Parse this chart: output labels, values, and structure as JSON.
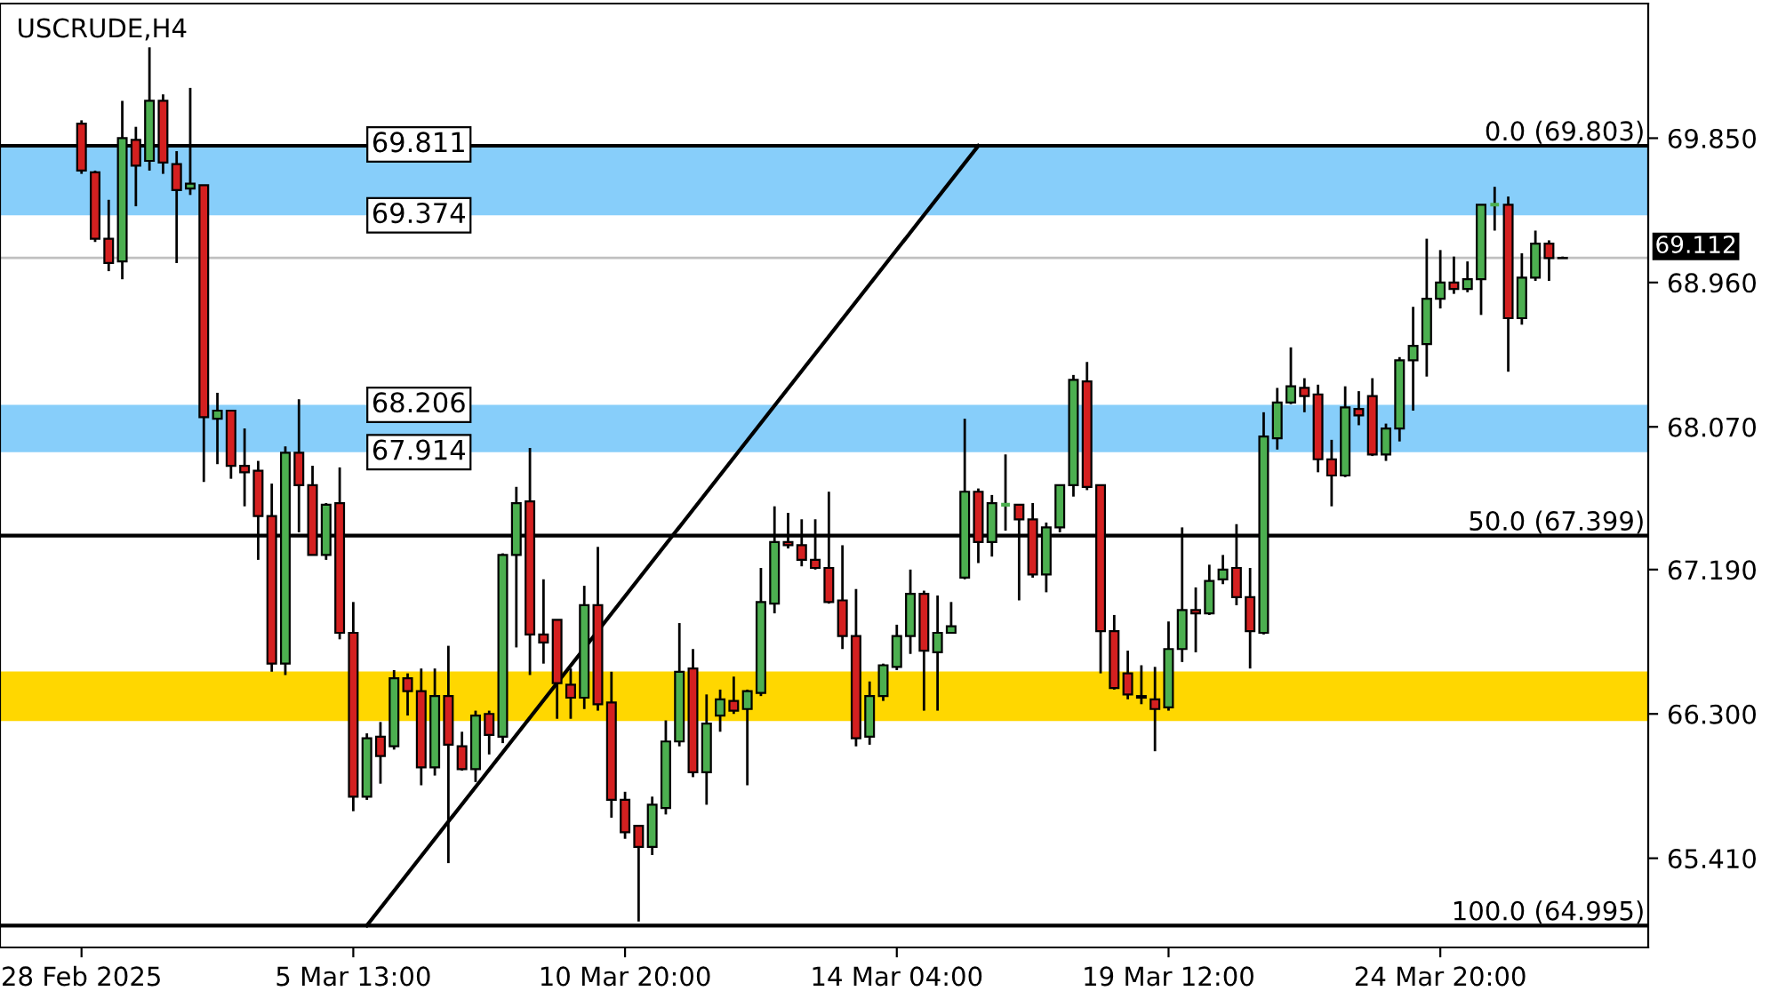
{
  "chart_data": {
    "type": "candlestick",
    "title": "USCRUDE,H4",
    "categories": [
      "28 Feb 2025",
      null,
      null,
      null,
      null,
      null,
      null,
      null,
      null,
      null,
      null,
      null,
      null,
      null,
      null,
      null,
      null,
      null,
      null,
      null,
      "5 Mar 13:00",
      null,
      null,
      null,
      null,
      null,
      null,
      null,
      null,
      null,
      null,
      null,
      null,
      null,
      null,
      null,
      null,
      null,
      null,
      null,
      "10 Mar 20:00",
      null,
      null,
      null,
      null,
      null,
      null,
      null,
      null,
      null,
      null,
      null,
      null,
      null,
      null,
      null,
      null,
      null,
      null,
      null,
      "14 Mar 04:00",
      null,
      null,
      null,
      null,
      null,
      null,
      null,
      null,
      null,
      null,
      null,
      null,
      null,
      null,
      null,
      null,
      null,
      null,
      null,
      "19 Mar 12:00",
      null,
      null,
      null,
      null,
      null,
      null,
      null,
      null,
      null,
      null,
      null,
      null,
      null,
      null,
      null,
      null,
      null,
      null,
      null,
      "24 Mar 20:00",
      null,
      null,
      null,
      null,
      null,
      null,
      null,
      null,
      null
    ],
    "ohlc": [
      [
        69.94,
        69.96,
        69.63,
        69.65
      ],
      [
        69.64,
        69.65,
        69.21,
        69.23
      ],
      [
        69.23,
        69.47,
        69.03,
        69.08
      ],
      [
        69.09,
        70.08,
        68.98,
        69.85
      ],
      [
        69.84,
        69.92,
        69.43,
        69.68
      ],
      [
        69.71,
        70.41,
        69.65,
        70.08
      ],
      [
        70.08,
        70.12,
        69.63,
        69.7
      ],
      [
        69.69,
        69.77,
        69.08,
        69.53
      ],
      [
        69.54,
        70.16,
        69.5,
        69.57
      ],
      [
        69.56,
        69.56,
        67.73,
        68.13
      ],
      [
        68.12,
        68.28,
        67.84,
        68.17
      ],
      [
        68.17,
        68.17,
        67.75,
        67.83
      ],
      [
        67.83,
        68.06,
        67.58,
        67.79
      ],
      [
        67.8,
        67.86,
        67.25,
        67.52
      ],
      [
        67.52,
        67.72,
        66.56,
        66.61
      ],
      [
        66.61,
        67.95,
        66.54,
        67.91
      ],
      [
        67.91,
        68.24,
        67.42,
        67.71
      ],
      [
        67.71,
        67.83,
        67.28,
        67.28
      ],
      [
        67.28,
        67.6,
        67.25,
        67.59
      ],
      [
        67.6,
        67.82,
        66.76,
        66.8
      ],
      [
        66.8,
        66.99,
        65.7,
        65.79
      ],
      [
        65.79,
        66.18,
        65.77,
        66.15
      ],
      [
        66.16,
        66.25,
        65.87,
        66.04
      ],
      [
        66.1,
        66.57,
        66.08,
        66.52
      ],
      [
        66.52,
        66.55,
        66.29,
        66.44
      ],
      [
        66.44,
        66.58,
        65.86,
        65.97
      ],
      [
        65.97,
        66.58,
        65.92,
        66.41
      ],
      [
        66.41,
        66.72,
        65.38,
        66.11
      ],
      [
        66.1,
        66.19,
        65.95,
        65.96
      ],
      [
        65.96,
        66.32,
        65.88,
        66.29
      ],
      [
        66.3,
        66.32,
        66.05,
        66.17
      ],
      [
        66.16,
        67.29,
        66.12,
        67.28
      ],
      [
        67.28,
        67.7,
        66.71,
        67.6
      ],
      [
        67.61,
        67.94,
        66.54,
        66.79
      ],
      [
        66.79,
        67.13,
        66.61,
        66.74
      ],
      [
        66.88,
        66.88,
        66.27,
        66.49
      ],
      [
        66.48,
        66.58,
        66.27,
        66.4
      ],
      [
        66.4,
        67.09,
        66.33,
        66.97
      ],
      [
        66.97,
        67.33,
        66.32,
        66.36
      ],
      [
        66.37,
        66.56,
        65.66,
        65.77
      ],
      [
        65.77,
        65.82,
        65.53,
        65.57
      ],
      [
        65.61,
        65.61,
        65.02,
        65.48
      ],
      [
        65.48,
        65.79,
        65.43,
        65.74
      ],
      [
        65.72,
        66.26,
        65.68,
        66.13
      ],
      [
        66.13,
        66.86,
        66.1,
        66.56
      ],
      [
        66.58,
        66.7,
        65.91,
        65.94
      ],
      [
        65.94,
        66.42,
        65.74,
        66.24
      ],
      [
        66.29,
        66.45,
        66.19,
        66.39
      ],
      [
        66.38,
        66.53,
        66.3,
        66.32
      ],
      [
        66.33,
        66.45,
        65.86,
        66.44
      ],
      [
        66.43,
        67.2,
        66.41,
        66.99
      ],
      [
        66.98,
        67.58,
        66.92,
        67.36
      ],
      [
        67.36,
        67.54,
        67.32,
        67.34
      ],
      [
        67.34,
        67.5,
        67.21,
        67.25
      ],
      [
        67.25,
        67.5,
        67.19,
        67.2
      ],
      [
        67.2,
        67.67,
        66.98,
        66.99
      ],
      [
        67.0,
        67.34,
        66.7,
        66.78
      ],
      [
        66.78,
        67.07,
        66.1,
        66.15
      ],
      [
        66.16,
        66.5,
        66.11,
        66.41
      ],
      [
        66.41,
        66.61,
        66.38,
        66.6
      ],
      [
        66.59,
        66.85,
        66.57,
        66.78
      ],
      [
        66.78,
        67.19,
        66.67,
        67.04
      ],
      [
        67.04,
        67.06,
        66.32,
        66.69
      ],
      [
        66.68,
        67.03,
        66.32,
        66.8
      ],
      [
        66.8,
        66.99,
        66.8,
        66.84
      ],
      [
        67.14,
        68.12,
        67.13,
        67.67
      ],
      [
        67.67,
        67.69,
        67.23,
        67.36
      ],
      [
        67.36,
        67.65,
        67.27,
        67.6
      ],
      [
        67.59,
        67.9,
        67.43,
        67.59
      ],
      [
        67.59,
        67.59,
        67.0,
        67.5
      ],
      [
        67.5,
        67.6,
        67.14,
        67.16
      ],
      [
        67.16,
        67.48,
        67.05,
        67.45
      ],
      [
        67.45,
        67.71,
        67.42,
        67.71
      ],
      [
        67.71,
        68.39,
        67.64,
        68.36
      ],
      [
        68.35,
        68.47,
        67.68,
        67.7
      ],
      [
        67.71,
        67.71,
        66.55,
        66.81
      ],
      [
        66.81,
        66.91,
        66.45,
        66.46
      ],
      [
        66.55,
        66.69,
        66.39,
        66.42
      ],
      [
        66.41,
        66.6,
        66.36,
        66.4
      ],
      [
        66.39,
        66.59,
        66.07,
        66.33
      ],
      [
        66.34,
        66.87,
        66.32,
        66.7
      ],
      [
        66.7,
        67.45,
        66.62,
        66.94
      ],
      [
        66.94,
        67.08,
        66.68,
        66.92
      ],
      [
        66.92,
        67.22,
        66.91,
        67.12
      ],
      [
        67.13,
        67.28,
        67.1,
        67.19
      ],
      [
        67.2,
        67.47,
        66.97,
        67.02
      ],
      [
        67.02,
        67.2,
        66.58,
        66.81
      ],
      [
        66.8,
        68.16,
        66.79,
        68.01
      ],
      [
        68.0,
        68.31,
        67.93,
        68.22
      ],
      [
        68.22,
        68.56,
        68.21,
        68.32
      ],
      [
        68.31,
        68.37,
        68.16,
        68.26
      ],
      [
        68.27,
        68.33,
        67.79,
        67.87
      ],
      [
        67.87,
        67.99,
        67.58,
        67.77
      ],
      [
        67.77,
        68.32,
        67.76,
        68.19
      ],
      [
        68.18,
        68.29,
        68.08,
        68.14
      ],
      [
        68.26,
        68.37,
        67.89,
        67.9
      ],
      [
        67.9,
        68.09,
        67.86,
        68.06
      ],
      [
        68.06,
        68.5,
        67.98,
        68.48
      ],
      [
        68.48,
        68.81,
        68.17,
        68.57
      ],
      [
        68.58,
        69.23,
        68.38,
        68.86
      ],
      [
        68.86,
        69.16,
        68.8,
        68.96
      ],
      [
        68.96,
        69.12,
        68.89,
        68.92
      ],
      [
        68.92,
        69.09,
        68.9,
        68.98
      ],
      [
        68.98,
        69.44,
        68.76,
        69.44
      ],
      [
        69.44,
        69.55,
        69.28,
        69.44
      ],
      [
        69.44,
        69.49,
        68.41,
        68.74
      ],
      [
        68.74,
        69.14,
        68.7,
        68.99
      ],
      [
        68.99,
        69.28,
        68.97,
        69.2
      ],
      [
        69.2,
        69.22,
        68.97,
        69.11
      ],
      [
        69.11,
        69.12,
        69.11,
        69.112
      ]
    ],
    "colors": [
      "#d42020",
      "#d42020",
      "#d42020",
      "#4caf50",
      "#d42020",
      "#4caf50",
      "#d42020",
      "#d42020",
      "#4caf50",
      "#d42020",
      "#4caf50",
      "#d42020",
      "#d42020",
      "#d42020",
      "#d42020",
      "#4caf50",
      "#d42020",
      "#d42020",
      "#4caf50",
      "#d42020",
      "#d42020",
      "#4caf50",
      "#d42020",
      "#4caf50",
      "#d42020",
      "#d42020",
      "#4caf50",
      "#d42020",
      "#d42020",
      "#4caf50",
      "#d42020",
      "#4caf50",
      "#4caf50",
      "#d42020",
      "#d42020",
      "#d42020",
      "#d42020",
      "#4caf50",
      "#d42020",
      "#d42020",
      "#d42020",
      "#d42020",
      "#4caf50",
      "#4caf50",
      "#4caf50",
      "#d42020",
      "#4caf50",
      "#4caf50",
      "#d42020",
      "#4caf50",
      "#4caf50",
      "#4caf50",
      "#d42020",
      "#d42020",
      "#d42020",
      "#d42020",
      "#d42020",
      "#d42020",
      "#4caf50",
      "#4caf50",
      "#4caf50",
      "#4caf50",
      "#d42020",
      "#4caf50",
      "#4caf50",
      "#4caf50",
      "#d42020",
      "#4caf50",
      "#4caf50",
      "#d42020",
      "#d42020",
      "#4caf50",
      "#4caf50",
      "#4caf50",
      "#d42020",
      "#d42020",
      "#d42020",
      "#d42020",
      "#d42020",
      "#d42020",
      "#4caf50",
      "#4caf50",
      "#d42020",
      "#4caf50",
      "#4caf50",
      "#d42020",
      "#d42020",
      "#4caf50",
      "#4caf50",
      "#4caf50",
      "#d42020",
      "#d42020",
      "#d42020",
      "#4caf50",
      "#d42020",
      "#d42020",
      "#4caf50",
      "#4caf50",
      "#4caf50",
      "#4caf50",
      "#4caf50",
      "#d42020",
      "#4caf50",
      "#4caf50",
      "#4caf50",
      "#d42020",
      "#4caf50",
      "#4caf50",
      "#d42020",
      "#4caf50"
    ],
    "series": [
      {
        "type": "line",
        "color": "#000000",
        "values": [
          null,
          null,
          null,
          null,
          null,
          null,
          null,
          null,
          null,
          null,
          null,
          null,
          null,
          null,
          null,
          null,
          null,
          null,
          null,
          null,
          null,
          64.995,
          null,
          null,
          null,
          null,
          null,
          null,
          null,
          null,
          null,
          null,
          null,
          null,
          null,
          null,
          null,
          null,
          null,
          null,
          null,
          null,
          null,
          null,
          null,
          null,
          null,
          null,
          null,
          null,
          null,
          null,
          null,
          null,
          null,
          null,
          null,
          null,
          null,
          null,
          null,
          null,
          null,
          null,
          null,
          null,
          69.803,
          null,
          null,
          null,
          null,
          null,
          null,
          null,
          null,
          null,
          null,
          null,
          null,
          null,
          null,
          null,
          null,
          null,
          null,
          null,
          null,
          null,
          null,
          null,
          null,
          null,
          null,
          null,
          null,
          null,
          null,
          null,
          null,
          null,
          null,
          null,
          null,
          null,
          null,
          null,
          null,
          null,
          null,
          null
        ]
      }
    ],
    "ylim": [
      64.86,
      70.68
    ],
    "yticks": [
      {
        "value": 65.41,
        "label": "65.410"
      },
      {
        "value": 66.3,
        "label": "66.300"
      },
      {
        "value": 67.19,
        "label": "67.190"
      },
      {
        "value": 68.07,
        "label": "68.070"
      },
      {
        "value": 68.96,
        "label": "68.960"
      },
      {
        "value": 69.85,
        "label": "69.850"
      }
    ],
    "bands": [
      {
        "axis": "y",
        "from": 69.374,
        "to": 69.811,
        "color": "#87cefa"
      },
      {
        "axis": "y",
        "from": 67.914,
        "to": 68.206,
        "color": "#87cefa"
      },
      {
        "axis": "y",
        "from": 66.256,
        "to": 66.562,
        "color": "#ffd700"
      }
    ],
    "ref_lines": [
      {
        "axis": "y",
        "value": 69.803,
        "label": "0.0 (69.803)",
        "color": "#000000"
      },
      {
        "axis": "y",
        "value": 67.399,
        "label": "50.0 (67.399)",
        "color": "#000000"
      },
      {
        "axis": "y",
        "value": 64.995,
        "label": "100.0 (64.995)",
        "color": "#000000"
      },
      {
        "axis": "y",
        "value": 69.112,
        "label": "69.112",
        "color": "#c0c0c0"
      }
    ],
    "annotations": [
      {
        "text": "69.811",
        "y": 69.811
      },
      {
        "text": "69.374",
        "y": 69.374
      },
      {
        "text": "68.206",
        "y": 68.206
      },
      {
        "text": "67.914",
        "y": 67.914
      }
    ],
    "grid": false,
    "legend": false
  }
}
